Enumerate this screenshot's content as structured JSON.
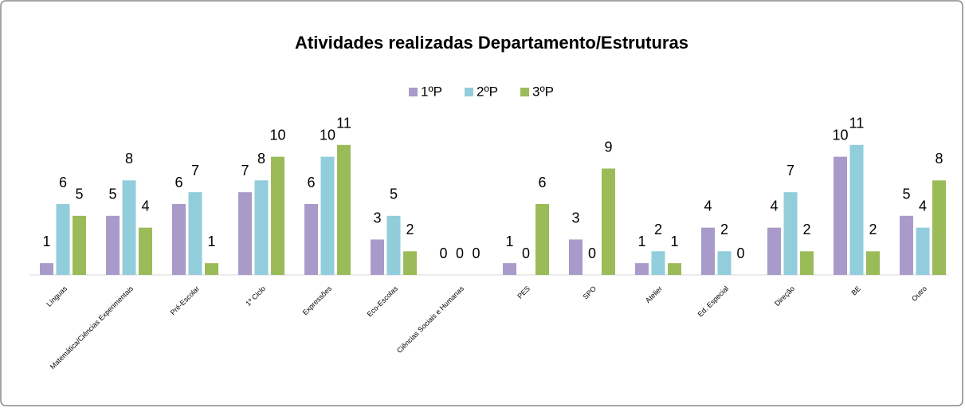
{
  "chart_data": {
    "type": "bar",
    "title": "Atividades realizadas Departamento/Estruturas",
    "categories": [
      "Línguas",
      "Matemática/Ciências Experimentais",
      "Pré-Escolar",
      "1º Ciclo",
      "Expressões",
      "Eco-Escolas",
      "Ciências Sociais e Humanas",
      "PES",
      "SPO",
      "Atelier",
      "Ed. Especial",
      "Direção",
      "BE",
      "Outro"
    ],
    "series": [
      {
        "name": "1ºP",
        "color": "#a99bc9",
        "values": [
          1,
          5,
          6,
          7,
          6,
          3,
          0,
          1,
          3,
          1,
          4,
          4,
          10,
          5
        ]
      },
      {
        "name": "2ºP",
        "color": "#92cddc",
        "values": [
          6,
          8,
          7,
          8,
          10,
          5,
          0,
          0,
          0,
          2,
          2,
          7,
          11,
          4
        ]
      },
      {
        "name": "3ºP",
        "color": "#9bbb59",
        "values": [
          5,
          4,
          1,
          10,
          11,
          2,
          0,
          6,
          9,
          1,
          0,
          2,
          2,
          8
        ]
      }
    ],
    "ylim": [
      0,
      12
    ],
    "legend": "top"
  }
}
